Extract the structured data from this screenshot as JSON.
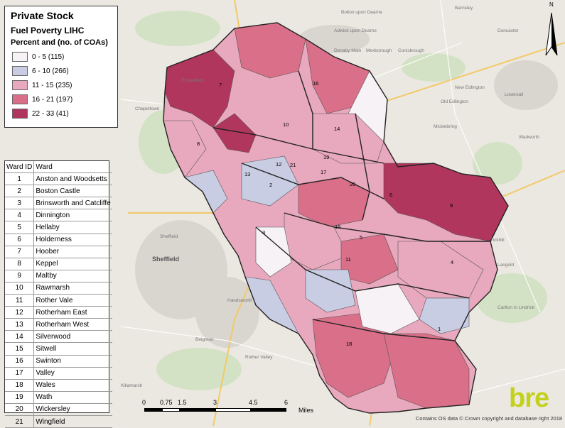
{
  "legend": {
    "title": "Private Stock",
    "subtitle": "Fuel Poverty LIHC",
    "measure": "Percent and (no. of COAs)",
    "classes": [
      {
        "label": "0 - 5 (115)",
        "color": "#f7f2f6"
      },
      {
        "label": "6 - 10 (266)",
        "color": "#c9cde3"
      },
      {
        "label": "11 - 15 (235)",
        "color": "#e8a8bd"
      },
      {
        "label": "16 - 21 (197)",
        "color": "#d96f88"
      },
      {
        "label": "22 - 33 (41)",
        "color": "#b0365e"
      }
    ]
  },
  "wards": {
    "header_id": "Ward ID",
    "header_name": "Ward",
    "rows": [
      {
        "id": "1",
        "name": "Anston and Woodsetts"
      },
      {
        "id": "2",
        "name": "Boston Castle"
      },
      {
        "id": "3",
        "name": "Brinsworth and Catcliffe"
      },
      {
        "id": "4",
        "name": "Dinnington"
      },
      {
        "id": "5",
        "name": "Hellaby"
      },
      {
        "id": "6",
        "name": "Holderness"
      },
      {
        "id": "7",
        "name": "Hoober"
      },
      {
        "id": "8",
        "name": "Keppel"
      },
      {
        "id": "9",
        "name": "Maltby"
      },
      {
        "id": "10",
        "name": "Rawmarsh"
      },
      {
        "id": "11",
        "name": "Rother Vale"
      },
      {
        "id": "12",
        "name": "Rotherham East"
      },
      {
        "id": "13",
        "name": "Rotherham West"
      },
      {
        "id": "14",
        "name": "Silverwood"
      },
      {
        "id": "15",
        "name": "Sitwell"
      },
      {
        "id": "16",
        "name": "Swinton"
      },
      {
        "id": "17",
        "name": "Valley"
      },
      {
        "id": "18",
        "name": "Wales"
      },
      {
        "id": "19",
        "name": "Wath"
      },
      {
        "id": "20",
        "name": "Wickersley"
      },
      {
        "id": "21",
        "name": "Wingfield"
      }
    ]
  },
  "map_labels": [
    "7",
    "16",
    "10",
    "14",
    "6",
    "21",
    "8",
    "13",
    "12",
    "2",
    "17",
    "19",
    "20",
    "9",
    "15",
    "5",
    "11",
    "4",
    "3",
    "1",
    "18"
  ],
  "place_names": [
    "Barnsley",
    "Bolton upon Dearne",
    "Adwick upon Dearne",
    "Denaby Main",
    "Conisbrough",
    "Mexborough",
    "Doncaster",
    "Old Edlington",
    "Wadworth",
    "Loversall",
    "New Edlington",
    "Micklebring",
    "Tickhill",
    "Langold",
    "Carlton in Lindrick",
    "Chapeltown",
    "Ecclesfield",
    "Sheffield",
    "Handsworth",
    "Beighton",
    "Killamarsh",
    "Rother Valley"
  ],
  "city_label": "Sheffield",
  "scale": {
    "ticks": [
      "0",
      "0.75",
      "1.5",
      "3",
      "4.5",
      "6"
    ],
    "unit": "Miles"
  },
  "north_label": "N",
  "credit": "Contains OS data © Crown copyright and database right 2018",
  "logo": "bre"
}
